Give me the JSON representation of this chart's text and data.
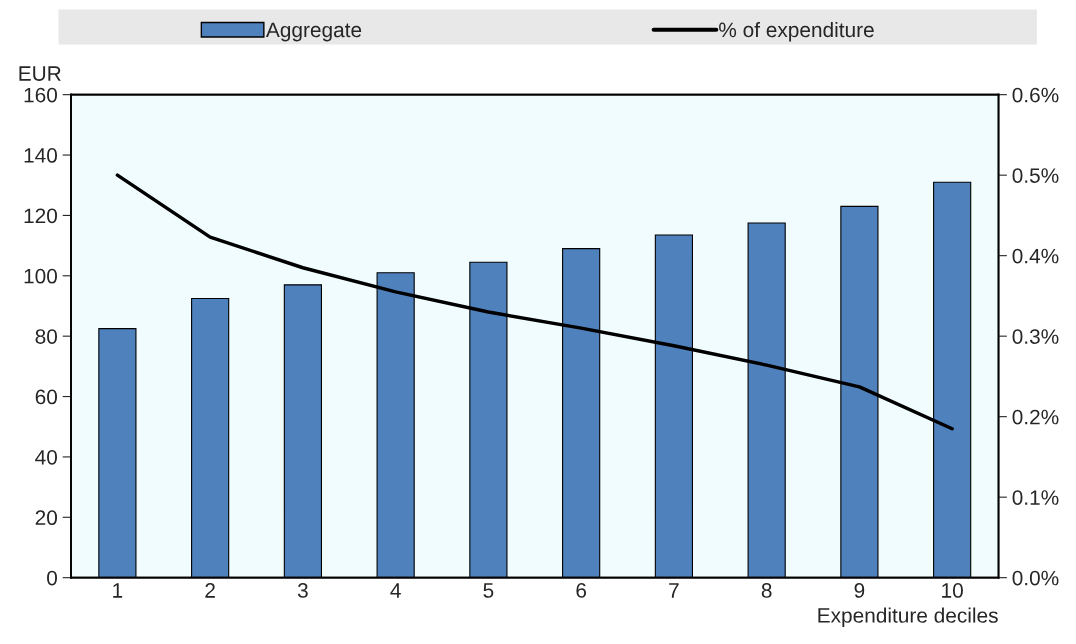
{
  "chart_data": {
    "type": "bar",
    "xlabel": "Expenditure deciles",
    "ylabel": "EUR",
    "categories": [
      "1",
      "2",
      "3",
      "4",
      "5",
      "6",
      "7",
      "8",
      "9",
      "10"
    ],
    "series": [
      {
        "name": "Aggregate",
        "color": "#4f81bd",
        "values": [
          82.5,
          92.5,
          97,
          101,
          104.5,
          109,
          113.5,
          117.5,
          123,
          131
        ]
      },
      {
        "name": "% of expenditure",
        "type": "line",
        "axis": "y2",
        "color": "#000000",
        "values": [
          0.5,
          0.423,
          0.385,
          0.355,
          0.33,
          0.31,
          0.288,
          0.264,
          0.237,
          0.185
        ]
      }
    ],
    "ylim": [
      0,
      160
    ],
    "yticks": [
      0,
      20,
      40,
      60,
      80,
      100,
      120,
      140,
      160
    ],
    "y2lim": [
      0,
      0.6
    ],
    "y2ticks": [
      {
        "value": 0,
        "label": "0.0%"
      },
      {
        "value": 0.1,
        "label": "0.1%"
      },
      {
        "value": 0.2,
        "label": "0.2%"
      },
      {
        "value": 0.3,
        "label": "0.3%"
      },
      {
        "value": 0.4,
        "label": "0.4%"
      },
      {
        "value": 0.5,
        "label": "0.5%"
      },
      {
        "value": 0.6,
        "label": "0.6%"
      }
    ],
    "grid": false,
    "legend": "top",
    "marker": "none",
    "line_style": "solid"
  }
}
